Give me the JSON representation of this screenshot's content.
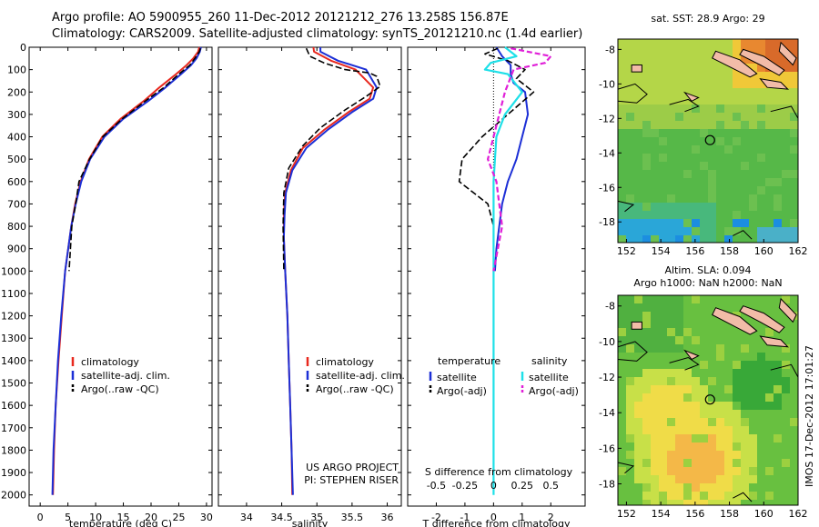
{
  "header": {
    "title_line1": "Argo profile: AO 5900955_260 11-Dec-2012 20121212_276 13.258S 156.87E",
    "title_line2": "Climatology: CARS2009. Satellite-adjusted climatology: synTS_20121210.nc (1.4d earlier)"
  },
  "colors": {
    "climatology": "#e8281e",
    "satellite": "#1c2fd6",
    "argo": "#000000",
    "sal_satellite": "#1ee0e8",
    "sal_argo": "#e020d8"
  },
  "chart_data": [
    {
      "type": "line",
      "xlabel": "temperature (deg C)",
      "xlim": [
        -2,
        31
      ],
      "xticks": [
        0,
        5,
        10,
        15,
        20,
        25,
        30
      ],
      "ylim": [
        0,
        2050
      ],
      "yticks": [
        0,
        100,
        200,
        300,
        400,
        500,
        600,
        700,
        800,
        900,
        1000,
        1100,
        1200,
        1300,
        1400,
        1500,
        1600,
        1700,
        1800,
        1900,
        2000
      ],
      "legend": [
        "climatology",
        "satellite-adj. clim.",
        "Argo(..raw -QC)"
      ],
      "series": [
        {
          "name": "climatology",
          "color": "#e8281e",
          "x": [
            28.7,
            28.5,
            27.6,
            26.4,
            24.5,
            21.5,
            18.7,
            14.5,
            11.2,
            8.8,
            7.3,
            6.3,
            5.6,
            4.5,
            3.9,
            3.3,
            2.8,
            2.5,
            2.3
          ],
          "y": [
            0,
            20,
            50,
            80,
            120,
            180,
            240,
            320,
            400,
            500,
            600,
            700,
            800,
            1000,
            1200,
            1400,
            1600,
            1800,
            2000
          ]
        },
        {
          "name": "satellite-adj. clim.",
          "color": "#1c2fd6",
          "x": [
            29.0,
            28.8,
            28.2,
            27.2,
            25.4,
            22.6,
            19.5,
            15.0,
            11.6,
            9.0,
            7.4,
            6.4,
            5.6,
            4.5,
            3.8,
            3.2,
            2.8,
            2.4,
            2.2
          ],
          "y": [
            0,
            20,
            50,
            80,
            120,
            180,
            240,
            320,
            400,
            500,
            600,
            700,
            800,
            1000,
            1200,
            1400,
            1600,
            1800,
            2000
          ]
        },
        {
          "name": "Argo(..raw -QC)",
          "color": "#000000",
          "x": [
            28.9,
            28.7,
            27.9,
            27.0,
            25.0,
            22.3,
            19.0,
            14.8,
            11.3,
            8.9,
            7.0,
            6.4,
            5.7,
            5.2
          ],
          "y": [
            5,
            20,
            50,
            80,
            120,
            180,
            240,
            320,
            400,
            500,
            600,
            700,
            800,
            1000
          ]
        }
      ]
    },
    {
      "type": "line",
      "xlabel": "salinity",
      "xlim": [
        33.6,
        36.2
      ],
      "xticks": [
        34,
        34.5,
        35,
        35.5,
        36
      ],
      "ylim": [
        0,
        2050
      ],
      "legend": [
        "climatology",
        "satellite-adj. clim.",
        "Argo(..raw -QC)"
      ],
      "annotations": [
        "US ARGO PROJECT",
        "PI: STEPHEN RISER"
      ],
      "series": [
        {
          "name": "climatology",
          "color": "#e8281e",
          "x": [
            34.95,
            34.96,
            35.2,
            35.55,
            35.8,
            35.75,
            35.45,
            35.1,
            34.8,
            34.63,
            34.55,
            34.53,
            34.53,
            34.55,
            34.58,
            34.6,
            34.62,
            34.64,
            34.65
          ],
          "y": [
            0,
            20,
            60,
            100,
            180,
            230,
            290,
            370,
            450,
            550,
            650,
            750,
            850,
            1000,
            1200,
            1400,
            1600,
            1800,
            2000
          ]
        },
        {
          "name": "satellite-adj. clim.",
          "color": "#1c2fd6",
          "x": [
            35.05,
            35.05,
            35.3,
            35.7,
            35.85,
            35.8,
            35.5,
            35.15,
            34.85,
            34.65,
            34.56,
            34.54,
            34.53,
            34.55,
            34.58,
            34.6,
            34.62,
            34.64,
            34.66
          ],
          "y": [
            0,
            20,
            60,
            100,
            180,
            230,
            290,
            370,
            450,
            550,
            650,
            750,
            850,
            1000,
            1200,
            1400,
            1600,
            1800,
            2000
          ]
        },
        {
          "name": "Argo(..raw -QC)",
          "color": "#000000",
          "x": [
            34.85,
            34.9,
            35.1,
            35.4,
            35.75,
            35.85,
            35.9,
            35.7,
            35.4,
            35.05,
            34.8,
            34.6,
            34.53,
            34.52,
            34.53
          ],
          "y": [
            5,
            40,
            70,
            100,
            115,
            130,
            175,
            220,
            280,
            360,
            440,
            540,
            650,
            800,
            1000
          ]
        }
      ]
    },
    {
      "type": "line",
      "xlabel": "T difference from climatology",
      "xlabel2": "S difference from climatology",
      "xlim": [
        -3,
        3.2
      ],
      "xticks": [
        -2,
        -1,
        0,
        1,
        2
      ],
      "xticks2_labels": [
        "-0.5",
        "-0.25",
        "0",
        "0.25",
        "0.5"
      ],
      "ylim": [
        0,
        2050
      ],
      "legend_titles": [
        "temperature",
        "salinity"
      ],
      "legend": [
        "satellite",
        "Argo(-adj)",
        "satellite",
        "Argo(-adj)"
      ],
      "series": [
        {
          "name": "temperature satellite",
          "color": "#1c2fd6",
          "x": [
            0.1,
            0.3,
            0.6,
            0.6,
            0.7,
            1.1,
            1.2,
            1.0,
            0.8,
            0.5,
            0.3,
            0.2,
            0.1,
            0.05
          ],
          "y": [
            0,
            40,
            80,
            120,
            160,
            200,
            300,
            400,
            500,
            600,
            700,
            800,
            900,
            1000
          ]
        },
        {
          "name": "temperature Argo(-adj)",
          "color": "#000000",
          "x": [
            0.15,
            -0.3,
            0.5,
            1.1,
            0.8,
            1.4,
            0.5,
            -0.4,
            -1.1,
            -1.2,
            -0.2,
            0.0,
            0.0
          ],
          "y": [
            5,
            30,
            60,
            100,
            140,
            200,
            300,
            400,
            500,
            600,
            700,
            800,
            1000
          ]
        },
        {
          "name": "salinity satellite",
          "color": "#1ee0e8",
          "x": [
            0.4,
            0.8,
            -0.1,
            -0.3,
            0.5,
            1.0,
            0.4,
            0.1,
            0.05,
            0.0,
            0.0,
            0.0,
            0.0
          ],
          "y": [
            0,
            40,
            70,
            100,
            120,
            200,
            300,
            400,
            500,
            600,
            700,
            1000,
            2000
          ]
        },
        {
          "name": "salinity Argo(-adj)",
          "color": "#e020d8",
          "x": [
            0.6,
            1.2,
            2.0,
            1.8,
            0.7,
            0.4,
            0.2,
            0.0,
            -0.2,
            0.1,
            0.2,
            0.3,
            0.0
          ],
          "y": [
            5,
            20,
            40,
            70,
            100,
            200,
            300,
            400,
            500,
            600,
            700,
            800,
            1000
          ]
        }
      ]
    },
    {
      "type": "heatmap",
      "title": "sat. SST: 28.9 Argo: 29",
      "xlim": [
        151.5,
        162
      ],
      "ylim": [
        -19.2,
        -7.4
      ],
      "xticks": [
        152,
        154,
        156,
        158,
        160,
        162
      ],
      "yticks": [
        -8,
        -10,
        -12,
        -14,
        -16,
        -18
      ],
      "marker": [
        156.87,
        -13.258
      ]
    },
    {
      "type": "heatmap",
      "title": "Altim. SLA: 0.094",
      "title2": "Argo h1000: NaN h2000: NaN",
      "xlim": [
        151.5,
        162
      ],
      "ylim": [
        -19.2,
        -7.4
      ],
      "xticks": [
        152,
        154,
        156,
        158,
        160,
        162
      ],
      "yticks": [
        -8,
        -10,
        -12,
        -14,
        -16,
        -18
      ],
      "marker": [
        156.87,
        -13.258
      ]
    }
  ],
  "timestamp": "IMOS 17-Dec-2012 17:01:27"
}
